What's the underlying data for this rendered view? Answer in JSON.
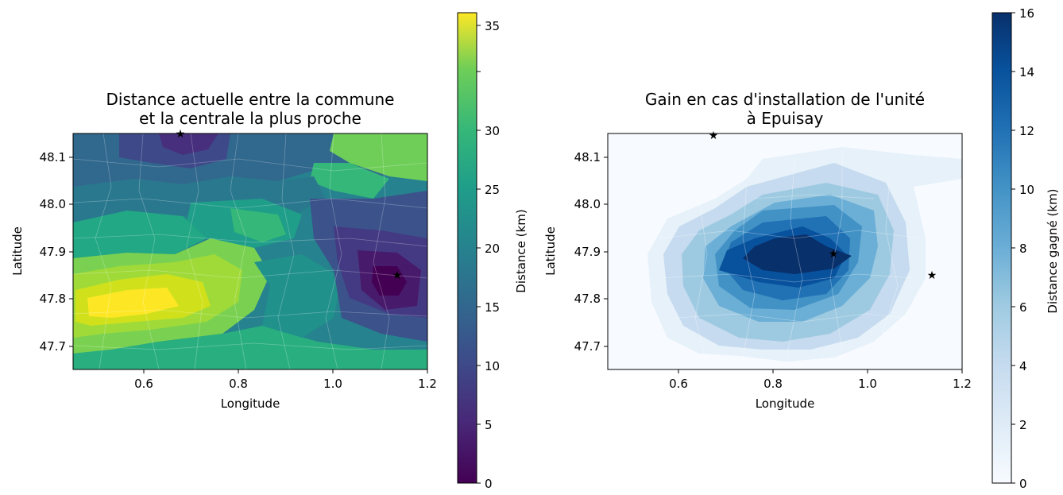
{
  "chart_data": [
    {
      "type": "heatmap",
      "title": [
        "Distance actuelle entre la commune",
        "et la centrale la plus proche"
      ],
      "xlabel": "Longitude",
      "ylabel": "Latitude",
      "xlim": [
        0.45,
        1.2
      ],
      "ylim": [
        47.65,
        48.15
      ],
      "xticks": [
        "0.6",
        "0.8",
        "1.0",
        "1.2"
      ],
      "yticks": [
        "47.7",
        "47.8",
        "47.9",
        "48.0",
        "48.1"
      ],
      "colorbar": {
        "label": "Distance (km)",
        "colormap": "viridis",
        "range": [
          0,
          36
        ],
        "ticks": [
          "0",
          "5",
          "10",
          "15",
          "20",
          "25",
          "30",
          "35"
        ]
      },
      "markers": [
        {
          "symbol": "star",
          "x": 0.675,
          "y": 48.15
        },
        {
          "symbol": "star",
          "x": 1.14,
          "y": 47.85
        }
      ],
      "grid": false
    },
    {
      "type": "heatmap",
      "title": [
        "Gain en cas d'installation de l'unité",
        "à Epuisay"
      ],
      "xlabel": "Longitude",
      "ylabel": "Latitude",
      "xlim": [
        0.45,
        1.2
      ],
      "ylim": [
        47.65,
        48.15
      ],
      "xticks": [
        "0.6",
        "0.8",
        "1.0",
        "1.2"
      ],
      "yticks": [
        "47.7",
        "47.8",
        "47.9",
        "48.0",
        "48.1"
      ],
      "colorbar": {
        "label": "Distance gagné (km)",
        "colormap": "Blues",
        "range": [
          0,
          16
        ],
        "ticks": [
          "0",
          "2",
          "4",
          "6",
          "8",
          "10",
          "12",
          "14",
          "16"
        ]
      },
      "markers": [
        {
          "symbol": "star",
          "x": 0.675,
          "y": 48.145
        },
        {
          "symbol": "star",
          "x": 0.93,
          "y": 47.895
        },
        {
          "symbol": "star",
          "x": 1.14,
          "y": 47.85
        }
      ],
      "grid": false
    }
  ]
}
